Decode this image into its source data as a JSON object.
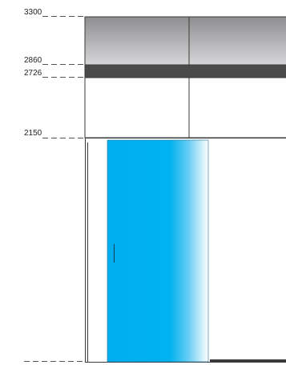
{
  "dimensions": {
    "top": "3300",
    "cornice_bottom": "2860",
    "band_bottom": "2726",
    "door_top": "2150"
  },
  "colors": {
    "line": "#3a3a3a",
    "dash": "#555555",
    "band": "#4a4a4a",
    "panel_gradient_top": "#8e8e90",
    "panel_gradient_bottom": "#d6d6d8",
    "glass_main": "#00aeef",
    "glass_edge": "#ffffff"
  }
}
